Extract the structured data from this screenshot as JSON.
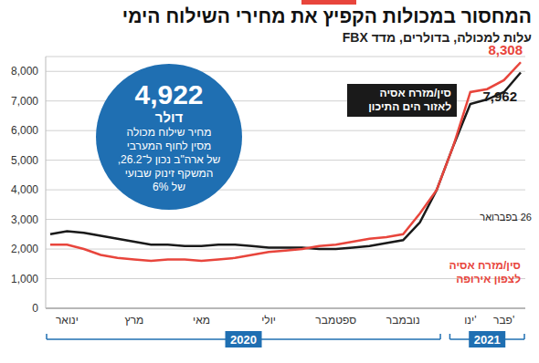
{
  "chart_data": {
    "type": "line",
    "title": "המחסור במכולות הקפיץ את מחירי השילוח הימי",
    "subtitle": "עלות למכולה, בדולרים, מדד FBX",
    "categories": [
      null,
      "ינואר",
      null,
      null,
      null,
      "מרץ",
      null,
      null,
      null,
      "מאי",
      null,
      null,
      null,
      "יולי",
      null,
      null,
      null,
      "ספטמבר",
      null,
      null,
      null,
      "נובמבר",
      null,
      null,
      null,
      "ינו'",
      null,
      "פבר'",
      null
    ],
    "series": [
      {
        "name": "סין/מזרח אסיה לאזור הים התיכון",
        "color": "#1a1a1a",
        "values": [
          2500,
          2600,
          2550,
          2450,
          2350,
          2250,
          2150,
          2150,
          2100,
          2100,
          2150,
          2150,
          2100,
          2050,
          2050,
          2050,
          2000,
          2000,
          2050,
          2100,
          2200,
          2300,
          2900,
          4000,
          5500,
          6900,
          7050,
          7300,
          7962
        ],
        "value_labels": [
          null,
          null,
          null,
          null,
          null,
          null,
          null,
          null,
          null,
          null,
          null,
          null,
          null,
          null,
          null,
          null,
          null,
          null,
          null,
          null,
          null,
          null,
          null,
          null,
          null,
          null,
          null,
          null,
          "7,962"
        ]
      },
      {
        "name": "סין/מזרח אסיה לצפון אירופה",
        "color": "#e8453c",
        "values": [
          2150,
          2150,
          2000,
          1800,
          1700,
          1650,
          1600,
          1650,
          1650,
          1600,
          1650,
          1700,
          1800,
          1900,
          1950,
          2000,
          2100,
          2150,
          2250,
          2350,
          2400,
          2500,
          3200,
          4000,
          5500,
          7300,
          7400,
          7700,
          8308
        ],
        "value_labels": [
          null,
          null,
          null,
          null,
          null,
          null,
          null,
          null,
          null,
          null,
          null,
          null,
          null,
          null,
          null,
          null,
          null,
          null,
          null,
          null,
          null,
          null,
          null,
          null,
          null,
          null,
          null,
          null,
          "8,308"
        ]
      }
    ],
    "ylim": [
      0,
      8500
    ],
    "yticks": [
      0,
      {
        "value": 1000,
        "label": "1,000"
      },
      {
        "value": 2000,
        "label": "2,000"
      },
      {
        "value": 3000,
        "label": "3,000"
      },
      {
        "value": 4000,
        "label": "4,000"
      },
      {
        "value": 5000,
        "label": "5,000"
      },
      {
        "value": 6000,
        "label": "6,000"
      },
      {
        "value": 7000,
        "label": "7,000"
      },
      {
        "value": 8000,
        "label": "8,000"
      }
    ],
    "grid": true,
    "periods": [
      {
        "label": "2020",
        "from": 0,
        "to": 23
      },
      {
        "label": "2021",
        "from": 24,
        "to": 28
      }
    ],
    "date_note": "26 בפברואר",
    "callout": {
      "headline": "4,922",
      "unit": "דולר",
      "lines": [
        "מחיר שילוח מכולה",
        "מסין לחוף המערבי",
        "של ארה\"ב נכון ל־26.2,",
        "המשקף זינוק שבועי",
        "של 6%"
      ]
    }
  }
}
